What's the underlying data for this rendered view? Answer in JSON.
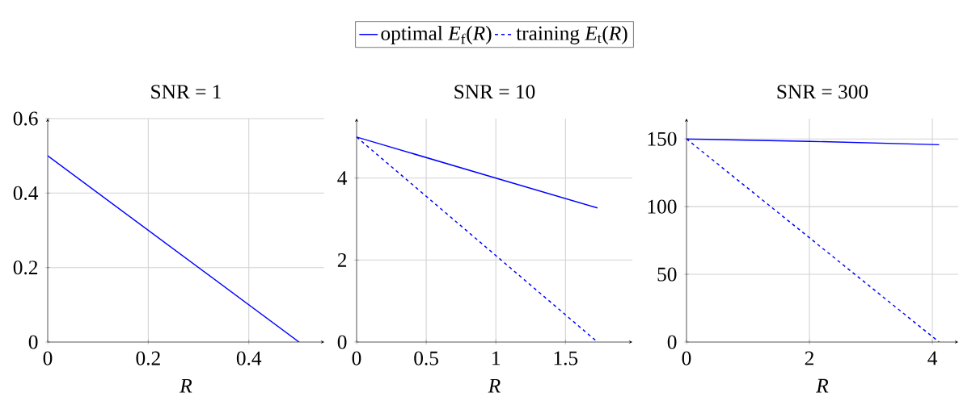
{
  "chart_data": [
    {
      "type": "line",
      "title": "SNR = 1",
      "xlabel": "*R*",
      "xlim": [
        0,
        0.55
      ],
      "ylim": [
        0,
        0.6
      ],
      "xticks": [
        0,
        0.2,
        0.4
      ],
      "yticks": [
        0,
        0.2,
        0.4,
        0.6
      ],
      "grid": true,
      "series": [
        {
          "color": "#0000ff",
          "line_style": "solid",
          "x": [
            0,
            0.5
          ],
          "values": [
            0.5,
            0
          ]
        }
      ]
    },
    {
      "type": "line",
      "title": "SNR = 10",
      "xlabel": "*R*",
      "xlim": [
        0,
        1.98
      ],
      "ylim": [
        0,
        5.45
      ],
      "xticks": [
        0,
        0.5,
        1,
        1.5
      ],
      "yticks": [
        0,
        2,
        4
      ],
      "grid": true,
      "legend": "top",
      "series": [
        {
          "name": "optimal *E*$_{f}$(*R*)",
          "color": "#0000ff",
          "line_style": "solid",
          "x": [
            0,
            1,
            1.73
          ],
          "values": [
            5,
            4,
            3.27
          ]
        },
        {
          "name": "training *E*$_{t}$(*R*)",
          "color": "#0000ff",
          "line_style": "dashed",
          "x": [
            0,
            1.73
          ],
          "values": [
            5,
            0
          ]
        }
      ]
    },
    {
      "type": "line",
      "title": "SNR = 300",
      "xlabel": "*R*",
      "xlim": [
        0,
        4.42
      ],
      "ylim": [
        0,
        165
      ],
      "xticks": [
        0,
        2,
        4
      ],
      "yticks": [
        0,
        50,
        100,
        150
      ],
      "grid": true,
      "series": [
        {
          "color": "#0000ff",
          "line_style": "solid",
          "x": [
            0,
            2,
            4.11
          ],
          "values": [
            150,
            148.2,
            145.7
          ]
        },
        {
          "color": "#0000ff",
          "line_style": "dashed",
          "x": [
            0,
            4.11
          ],
          "values": [
            150,
            0
          ]
        }
      ]
    }
  ]
}
